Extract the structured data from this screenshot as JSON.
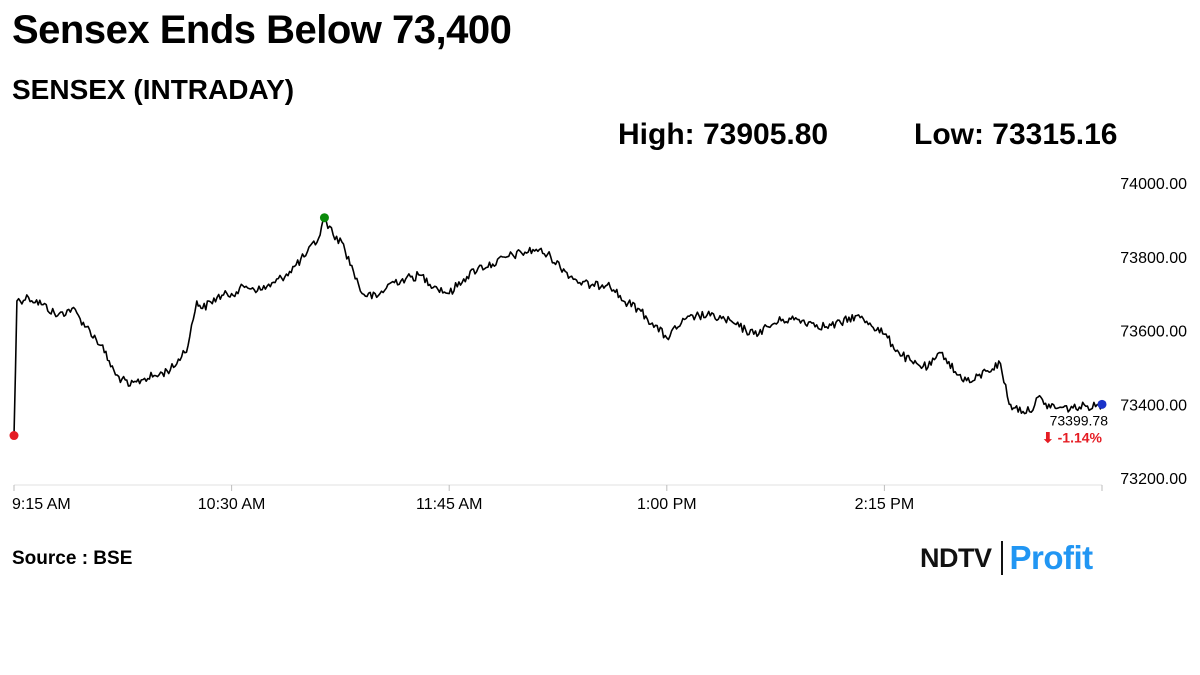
{
  "headline": "Sensex Ends Below 73,400",
  "subtitle": "SENSEX (INTRADAY)",
  "stats": {
    "high": "High: 73905.80",
    "low": "Low: 73315.16"
  },
  "last_label": {
    "value": "73399.78",
    "change": "⬇ -1.14%"
  },
  "source": "Source : BSE",
  "logo": {
    "ndtv": "NDTV",
    "profit": "Profit",
    "accent_color": "#2196f3"
  },
  "colors": {
    "line": "#000000",
    "grid": "#e0e0e0",
    "low_marker": "#e51c23",
    "high_marker": "#0a8a0a",
    "last_marker": "#1a33c9",
    "change": "#e51c23"
  },
  "chart_data": {
    "type": "line",
    "title": "SENSEX (INTRADAY)",
    "xlabel": "",
    "ylabel": "",
    "x_ticks": [
      "9:15 AM",
      "10:30 AM",
      "11:45 AM",
      "1:00 PM",
      "2:15 PM"
    ],
    "y_ticks": [
      "74000.00",
      "73800.00",
      "73600.00",
      "73400.00",
      "73200.00"
    ],
    "ylim": [
      73200,
      74000
    ],
    "x_minutes_range": [
      "9:15 AM",
      "3:30 PM"
    ],
    "grid": false,
    "series": [
      {
        "values": [
          [
            "9:15 AM",
            73315.16
          ],
          [
            "9:16 AM",
            73680
          ],
          [
            "9:20 AM",
            73690
          ],
          [
            "9:25 AM",
            73670
          ],
          [
            "9:30 AM",
            73640
          ],
          [
            "9:35 AM",
            73660
          ],
          [
            "9:40 AM",
            73610
          ],
          [
            "9:45 AM",
            73560
          ],
          [
            "9:50 AM",
            73480
          ],
          [
            "9:55 AM",
            73450
          ],
          [
            "10:00 AM",
            73470
          ],
          [
            "10:05 AM",
            73480
          ],
          [
            "10:10 AM",
            73500
          ],
          [
            "10:15 AM",
            73560
          ],
          [
            "10:18 AM",
            73680
          ],
          [
            "10:20 AM",
            73660
          ],
          [
            "10:25 AM",
            73690
          ],
          [
            "10:30 AM",
            73700
          ],
          [
            "10:35 AM",
            73720
          ],
          [
            "10:40 AM",
            73710
          ],
          [
            "10:45 AM",
            73730
          ],
          [
            "10:50 AM",
            73760
          ],
          [
            "10:55 AM",
            73800
          ],
          [
            "11:00 AM",
            73850
          ],
          [
            "11:02 AM",
            73905.8
          ],
          [
            "11:05 AM",
            73860
          ],
          [
            "11:08 AM",
            73840
          ],
          [
            "11:12 AM",
            73760
          ],
          [
            "11:15 AM",
            73700
          ],
          [
            "11:20 AM",
            73690
          ],
          [
            "11:25 AM",
            73730
          ],
          [
            "11:30 AM",
            73740
          ],
          [
            "11:35 AM",
            73750
          ],
          [
            "11:40 AM",
            73720
          ],
          [
            "11:45 AM",
            73700
          ],
          [
            "11:50 AM",
            73740
          ],
          [
            "11:55 AM",
            73770
          ],
          [
            "12:00 PM",
            73780
          ],
          [
            "12:05 PM",
            73800
          ],
          [
            "12:10 PM",
            73810
          ],
          [
            "12:15 PM",
            73820
          ],
          [
            "12:20 PM",
            73800
          ],
          [
            "12:25 PM",
            73760
          ],
          [
            "12:30 PM",
            73730
          ],
          [
            "12:35 PM",
            73720
          ],
          [
            "12:40 PM",
            73730
          ],
          [
            "12:45 PM",
            73680
          ],
          [
            "12:50 PM",
            73660
          ],
          [
            "12:55 PM",
            73620
          ],
          [
            "1:00 PM",
            73580
          ],
          [
            "1:05 PM",
            73620
          ],
          [
            "1:10 PM",
            73640
          ],
          [
            "1:15 PM",
            73640
          ],
          [
            "1:20 PM",
            73630
          ],
          [
            "1:25 PM",
            73610
          ],
          [
            "1:30 PM",
            73590
          ],
          [
            "1:35 PM",
            73610
          ],
          [
            "1:40 PM",
            73630
          ],
          [
            "1:45 PM",
            73630
          ],
          [
            "1:50 PM",
            73620
          ],
          [
            "1:55 PM",
            73610
          ],
          [
            "2:00 PM",
            73620
          ],
          [
            "2:05 PM",
            73640
          ],
          [
            "2:10 PM",
            73620
          ],
          [
            "2:15 PM",
            73590
          ],
          [
            "2:20 PM",
            73540
          ],
          [
            "2:25 PM",
            73510
          ],
          [
            "2:30 PM",
            73500
          ],
          [
            "2:35 PM",
            73540
          ],
          [
            "2:40 PM",
            73480
          ],
          [
            "2:45 PM",
            73460
          ],
          [
            "2:50 PM",
            73490
          ],
          [
            "2:55 PM",
            73510
          ],
          [
            "2:58 PM",
            73400
          ],
          [
            "3:00 PM",
            73390
          ],
          [
            "3:05 PM",
            73380
          ],
          [
            "3:08 PM",
            73420
          ],
          [
            "3:10 PM",
            73400
          ],
          [
            "3:15 PM",
            73390
          ],
          [
            "3:20 PM",
            73390
          ],
          [
            "3:25 PM",
            73395
          ],
          [
            "3:30 PM",
            73399.78
          ]
        ]
      }
    ],
    "annotations": [
      {
        "type": "low-marker",
        "x": "9:15 AM",
        "y": 73315.16
      },
      {
        "type": "high-marker",
        "x": "11:02 AM",
        "y": 73905.8
      },
      {
        "type": "last-marker",
        "x": "3:30 PM",
        "y": 73399.78,
        "label": "73399.78",
        "change": "-1.14%"
      }
    ]
  }
}
